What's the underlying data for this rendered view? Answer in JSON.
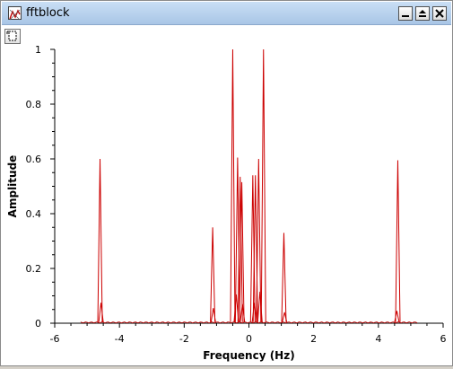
{
  "window": {
    "title": "fftblock"
  },
  "titlebar_icons": [
    "plot-window-icon",
    "minimize-icon",
    "maximize-icon",
    "close-icon"
  ],
  "toolbar": {
    "tools": [
      "zoom-icon"
    ]
  },
  "colors": {
    "signal": "#cc0000",
    "axis": "#000000",
    "titlebar": "#b9d3ef"
  },
  "chart_data": {
    "type": "line",
    "title": "",
    "xlabel": "Frequency (Hz)",
    "ylabel": "Amplitude",
    "xlim": [
      -6,
      6
    ],
    "ylim": [
      0,
      1
    ],
    "xticks": [
      "-6",
      "-4",
      "-2",
      "0",
      "2",
      "4",
      "6"
    ],
    "yticks": [
      "0",
      "0.2",
      "0.4",
      "0.6",
      "0.8",
      "1"
    ],
    "grid": false,
    "series": [
      {
        "peaks": [
          {
            "x": -4.6,
            "y": 0.6
          },
          {
            "x": -4.57,
            "y": 0.075
          },
          {
            "x": -1.12,
            "y": 0.35
          },
          {
            "x": -1.1,
            "y": 0.055
          },
          {
            "x": -0.5,
            "y": 1.0
          },
          {
            "x": -0.39,
            "y": 0.105
          },
          {
            "x": -0.35,
            "y": 0.605
          },
          {
            "x": -0.27,
            "y": 0.535
          },
          {
            "x": -0.22,
            "y": 0.515
          },
          {
            "x": -0.2,
            "y": 0.07
          },
          {
            "x": 0.12,
            "y": 0.54
          },
          {
            "x": 0.17,
            "y": 0.075
          },
          {
            "x": 0.2,
            "y": 0.54
          },
          {
            "x": 0.3,
            "y": 0.6
          },
          {
            "x": 0.34,
            "y": 0.115
          },
          {
            "x": 0.45,
            "y": 1.0
          },
          {
            "x": 1.08,
            "y": 0.33
          },
          {
            "x": 1.1,
            "y": 0.04
          },
          {
            "x": 4.6,
            "y": 0.595
          },
          {
            "x": 4.57,
            "y": 0.045
          }
        ],
        "noise_range": [
          -5.2,
          5.2
        ],
        "noise_level": 0.003
      }
    ]
  }
}
